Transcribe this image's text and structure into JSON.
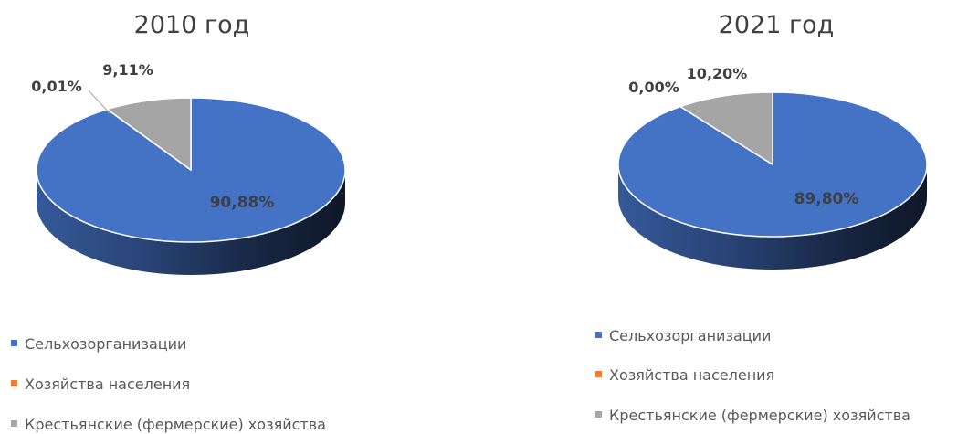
{
  "chart_data": [
    {
      "type": "pie",
      "title": "2010 год",
      "categories": [
        "Сельхозорганизации",
        "Хозяйства населения",
        "Крестьянские (фермерские) хозяйства"
      ],
      "values": [
        90.88,
        0.01,
        9.11
      ],
      "data_labels": [
        "90,88%",
        "0,01%",
        "9,11%"
      ],
      "colors": [
        "#4472C4",
        "#ED7D31",
        "#A5A5A5"
      ],
      "legend_position": "bottom"
    },
    {
      "type": "pie",
      "title": "2021 год",
      "categories": [
        "Сельхозорганизации",
        "Хозяйства населения",
        "Крестьянские (фермерские) хозяйства"
      ],
      "values": [
        89.8,
        0.0,
        10.2
      ],
      "data_labels": [
        "89,80%",
        "0,00%",
        "10,20%"
      ],
      "colors": [
        "#4472C4",
        "#ED7D31",
        "#A5A5A5"
      ],
      "legend_position": "bottom"
    }
  ]
}
